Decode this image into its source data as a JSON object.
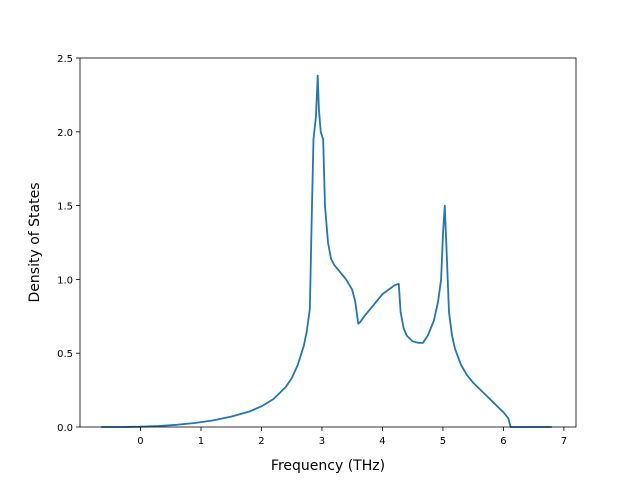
{
  "chart_data": {
    "type": "line",
    "title": "",
    "xlabel": "Frequency (THz)",
    "ylabel": "Density of States",
    "xlim": [
      -1.0,
      7.2
    ],
    "ylim": [
      0.0,
      2.5
    ],
    "xticks": [
      0,
      1,
      2,
      3,
      4,
      5,
      6,
      7
    ],
    "xtick_labels": [
      "0",
      "1",
      "2",
      "3",
      "4",
      "5",
      "6",
      "7"
    ],
    "yticks": [
      0.0,
      0.5,
      1.0,
      1.5,
      2.0,
      2.5
    ],
    "ytick_labels": [
      "0.0",
      "0.5",
      "1.0",
      "1.5",
      "2.0",
      "2.5"
    ],
    "grid": false,
    "series": [
      {
        "color": "#1f77b4",
        "x": [
          -0.65,
          -0.3,
          0.0,
          0.3,
          0.6,
          0.9,
          1.2,
          1.5,
          1.8,
          2.0,
          2.2,
          2.4,
          2.5,
          2.6,
          2.7,
          2.75,
          2.8,
          2.83,
          2.86,
          2.9,
          2.93,
          2.95,
          2.98,
          3.02,
          3.05,
          3.1,
          3.15,
          3.2,
          3.3,
          3.4,
          3.5,
          3.55,
          3.6,
          3.63,
          3.7,
          3.8,
          3.9,
          4.0,
          4.1,
          4.2,
          4.27,
          4.3,
          4.35,
          4.4,
          4.5,
          4.6,
          4.67,
          4.75,
          4.85,
          4.92,
          4.97,
          5.0,
          5.03,
          5.06,
          5.1,
          5.15,
          5.2,
          5.3,
          5.4,
          5.5,
          5.6,
          5.7,
          5.8,
          5.9,
          6.0,
          6.08,
          6.12,
          6.18,
          6.5,
          6.8
        ],
        "y": [
          0.0,
          0.0,
          0.002,
          0.007,
          0.015,
          0.027,
          0.045,
          0.07,
          0.105,
          0.14,
          0.19,
          0.27,
          0.33,
          0.42,
          0.55,
          0.65,
          0.8,
          1.4,
          1.95,
          2.1,
          2.38,
          2.15,
          2.0,
          1.95,
          1.5,
          1.25,
          1.14,
          1.1,
          1.05,
          1.0,
          0.93,
          0.85,
          0.7,
          0.71,
          0.75,
          0.8,
          0.85,
          0.9,
          0.93,
          0.96,
          0.97,
          0.78,
          0.67,
          0.62,
          0.58,
          0.57,
          0.57,
          0.62,
          0.72,
          0.85,
          1.0,
          1.3,
          1.5,
          1.2,
          0.78,
          0.62,
          0.53,
          0.42,
          0.35,
          0.3,
          0.26,
          0.22,
          0.18,
          0.14,
          0.1,
          0.06,
          0.0,
          0.0,
          0.0,
          0.0
        ]
      }
    ]
  }
}
